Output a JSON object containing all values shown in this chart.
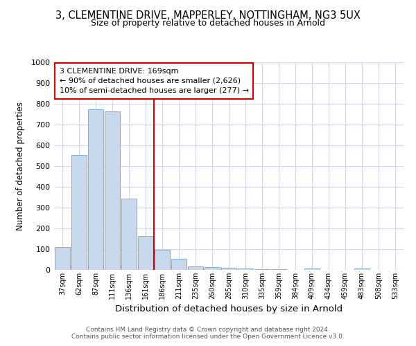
{
  "title_line1": "3, CLEMENTINE DRIVE, MAPPERLEY, NOTTINGHAM, NG3 5UX",
  "title_line2": "Size of property relative to detached houses in Arnold",
  "xlabel": "Distribution of detached houses by size in Arnold",
  "ylabel": "Number of detached properties",
  "categories": [
    "37sqm",
    "62sqm",
    "87sqm",
    "111sqm",
    "136sqm",
    "161sqm",
    "186sqm",
    "211sqm",
    "235sqm",
    "260sqm",
    "285sqm",
    "310sqm",
    "335sqm",
    "359sqm",
    "384sqm",
    "409sqm",
    "434sqm",
    "459sqm",
    "483sqm",
    "508sqm",
    "533sqm"
  ],
  "values": [
    110,
    555,
    775,
    765,
    345,
    163,
    97,
    54,
    17,
    13,
    9,
    8,
    5,
    4,
    0,
    8,
    0,
    0,
    8,
    0,
    0
  ],
  "bar_color": "#c8d9ee",
  "bar_edge_color": "#7aadd4",
  "vline_x": 5.5,
  "vline_color": "#cc0000",
  "annotation_text": "3 CLEMENTINE DRIVE: 169sqm\n← 90% of detached houses are smaller (2,626)\n10% of semi-detached houses are larger (277) →",
  "annotation_box_color": "#ffffff",
  "annotation_box_edge_color": "#cc0000",
  "ylim": [
    0,
    1000
  ],
  "yticks": [
    0,
    100,
    200,
    300,
    400,
    500,
    600,
    700,
    800,
    900,
    1000
  ],
  "footer_line1": "Contains HM Land Registry data © Crown copyright and database right 2024.",
  "footer_line2": "Contains public sector information licensed under the Open Government Licence v3.0.",
  "background_color": "#ffffff",
  "plot_bg_color": "#ffffff",
  "grid_color": "#d0d8e8"
}
